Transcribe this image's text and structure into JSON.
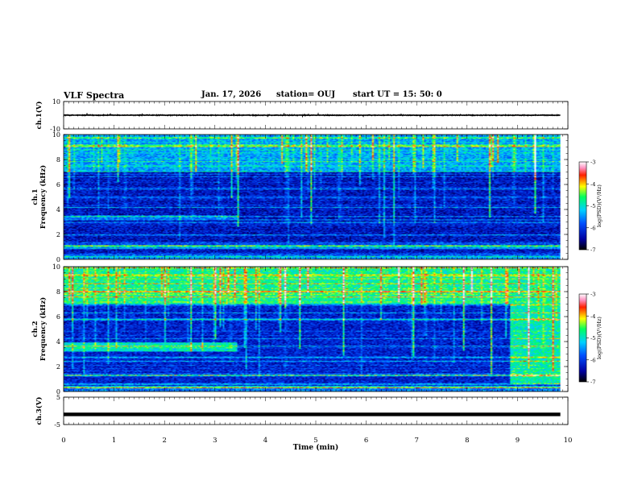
{
  "header": {
    "title": "VLF Spectra",
    "date": "Jan. 17, 2026",
    "station": "station= OUJ",
    "start_ut": "start  UT =   15: 50: 0"
  },
  "chart_data": [
    {
      "id": "ch1-waveform",
      "type": "line",
      "ylabel": "ch.1(V)",
      "ylim": [
        -10,
        10
      ],
      "yticks": [
        "10",
        "-10"
      ],
      "x_range_min": [
        0,
        9.85
      ],
      "level": 0,
      "noise_band": 0.5
    },
    {
      "id": "ch1-spectrogram",
      "type": "heatmap",
      "ylabel": "ch.1\nFrequency  (kHz)",
      "ylim": [
        0,
        10
      ],
      "yticks": [
        "0",
        "2",
        "4",
        "6",
        "8",
        "10"
      ],
      "x_range_min": [
        0,
        9.85
      ],
      "colorbar": {
        "label": "log(PSD)(V²/Hz)",
        "ticks": [
          "-3",
          "-4",
          "-5",
          "-6",
          "-7"
        ],
        "range": [
          -7,
          -3
        ]
      },
      "background_level": -6.3,
      "regions": [
        {
          "t": [
            0,
            3.45
          ],
          "f": [
            3.2,
            3.5
          ],
          "level": -5.6
        },
        {
          "t": [
            0,
            9.85
          ],
          "f": [
            0.8,
            1.4
          ],
          "level": -5.9
        },
        {
          "t": [
            0,
            9.85
          ],
          "f": [
            7,
            10
          ],
          "level": -5.4
        }
      ]
    },
    {
      "id": "ch2-spectrogram",
      "type": "heatmap",
      "ylabel": "ch.2\nFrequency  (kHz)",
      "ylim": [
        0,
        10
      ],
      "yticks": [
        "0",
        "2",
        "4",
        "6",
        "8",
        "10"
      ],
      "x_range_min": [
        0,
        9.85
      ],
      "colorbar": {
        "label": "log(PSD)(V²/Hz)",
        "ticks": [
          "-3",
          "-4",
          "-5",
          "-6",
          "-7"
        ],
        "range": [
          -7,
          -3
        ]
      },
      "background_level": -6.2,
      "regions": [
        {
          "t": [
            0,
            9.85
          ],
          "f": [
            7,
            10
          ],
          "level": -4.8
        },
        {
          "t": [
            0,
            3.45
          ],
          "f": [
            3.2,
            3.9
          ],
          "level": -5.0
        },
        {
          "t": [
            8.85,
            9.85
          ],
          "f": [
            0.6,
            10
          ],
          "level": -4.9
        }
      ]
    },
    {
      "id": "ch3-waveform",
      "type": "line",
      "ylabel": "ch.3(V)",
      "ylim": [
        -5,
        5
      ],
      "yticks": [
        "5",
        "-5"
      ],
      "x_range_min": [
        0,
        9.85
      ],
      "level": -1.3,
      "noise_band": 0.35
    }
  ],
  "xaxis": {
    "label": "Time  (min)",
    "ticks": [
      "0",
      "1",
      "2",
      "3",
      "4",
      "5",
      "6",
      "7",
      "8",
      "9",
      "10"
    ],
    "range": [
      0,
      10
    ]
  }
}
